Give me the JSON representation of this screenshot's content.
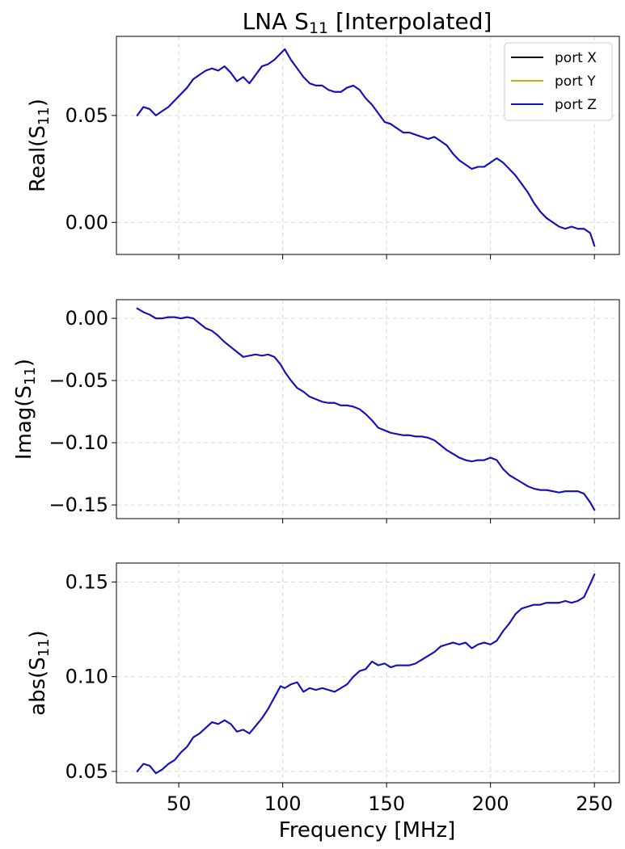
{
  "chart_data": {
    "type": "line",
    "title": "LNA S11 [Interpolated]",
    "title_parts": {
      "before": "LNA S",
      "sub": "11",
      "after": " [Interpolated]"
    },
    "xlabel": "Frequency [MHz]",
    "xlim": [
      20,
      262
    ],
    "xticks": [
      50,
      100,
      150,
      200,
      250
    ],
    "xtick_labels": [
      "50",
      "100",
      "150",
      "200",
      "250"
    ],
    "grid": true,
    "legend": {
      "placement": "top-right",
      "entries": [
        {
          "name": "port X",
          "color": "#000000"
        },
        {
          "name": "port Y",
          "color": "#c8b400"
        },
        {
          "name": "port Z",
          "color": "#1010cc"
        }
      ]
    },
    "x": [
      30,
      33,
      36,
      39,
      42,
      45,
      48,
      51,
      54,
      57,
      60,
      63,
      66,
      69,
      72,
      75,
      78,
      81,
      84,
      87,
      90,
      93,
      96,
      99,
      101,
      104,
      107,
      110,
      113,
      116,
      119,
      122,
      125,
      128,
      131,
      134,
      137,
      140,
      143,
      146,
      149,
      152,
      155,
      158,
      161,
      164,
      167,
      170,
      173,
      176,
      179,
      182,
      185,
      188,
      191,
      194,
      197,
      200,
      203,
      206,
      209,
      212,
      215,
      218,
      221,
      224,
      227,
      230,
      233,
      236,
      239,
      242,
      245,
      248,
      250
    ],
    "panels": [
      {
        "ylabel": "Real(S11)",
        "ylabel_parts": {
          "before": "Real(S",
          "sub": "11",
          "after": ")"
        },
        "ylim": [
          -0.015,
          0.087
        ],
        "yticks": [
          0.0,
          0.05
        ],
        "ytick_labels": [
          "0.00",
          "0.05"
        ],
        "series": [
          {
            "name": "port X",
            "color": "#000000",
            "values": [
              0.05,
              0.054,
              0.053,
              0.05,
              0.052,
              0.054,
              0.057,
              0.06,
              0.063,
              0.067,
              0.069,
              0.071,
              0.072,
              0.071,
              0.073,
              0.07,
              0.066,
              0.068,
              0.065,
              0.069,
              0.073,
              0.074,
              0.076,
              0.079,
              0.081,
              0.076,
              0.072,
              0.068,
              0.065,
              0.064,
              0.064,
              0.062,
              0.061,
              0.061,
              0.063,
              0.064,
              0.062,
              0.058,
              0.055,
              0.051,
              0.047,
              0.046,
              0.044,
              0.042,
              0.042,
              0.041,
              0.04,
              0.039,
              0.04,
              0.038,
              0.036,
              0.032,
              0.029,
              0.027,
              0.025,
              0.026,
              0.026,
              0.028,
              0.03,
              0.028,
              0.025,
              0.022,
              0.018,
              0.014,
              0.009,
              0.005,
              0.002,
              0.0,
              -0.002,
              -0.003,
              -0.002,
              -0.003,
              -0.003,
              -0.005,
              -0.011
            ]
          },
          {
            "name": "port Y",
            "color": "#c8b400",
            "values": [
              0.05,
              0.054,
              0.053,
              0.05,
              0.052,
              0.054,
              0.057,
              0.06,
              0.063,
              0.067,
              0.069,
              0.071,
              0.072,
              0.071,
              0.073,
              0.07,
              0.066,
              0.068,
              0.065,
              0.069,
              0.073,
              0.074,
              0.076,
              0.079,
              0.081,
              0.076,
              0.072,
              0.068,
              0.065,
              0.064,
              0.064,
              0.062,
              0.061,
              0.061,
              0.063,
              0.064,
              0.062,
              0.058,
              0.055,
              0.051,
              0.047,
              0.046,
              0.044,
              0.042,
              0.042,
              0.041,
              0.04,
              0.039,
              0.04,
              0.038,
              0.036,
              0.032,
              0.029,
              0.027,
              0.025,
              0.026,
              0.026,
              0.028,
              0.03,
              0.028,
              0.025,
              0.022,
              0.018,
              0.014,
              0.009,
              0.005,
              0.002,
              0.0,
              -0.002,
              -0.003,
              -0.002,
              -0.003,
              -0.003,
              -0.005,
              -0.011
            ]
          },
          {
            "name": "port Z",
            "color": "#1010cc",
            "values": [
              0.05,
              0.054,
              0.053,
              0.05,
              0.052,
              0.054,
              0.057,
              0.06,
              0.063,
              0.067,
              0.069,
              0.071,
              0.072,
              0.071,
              0.073,
              0.07,
              0.066,
              0.068,
              0.065,
              0.069,
              0.073,
              0.074,
              0.076,
              0.079,
              0.081,
              0.076,
              0.072,
              0.068,
              0.065,
              0.064,
              0.064,
              0.062,
              0.061,
              0.061,
              0.063,
              0.064,
              0.062,
              0.058,
              0.055,
              0.051,
              0.047,
              0.046,
              0.044,
              0.042,
              0.042,
              0.041,
              0.04,
              0.039,
              0.04,
              0.038,
              0.036,
              0.032,
              0.029,
              0.027,
              0.025,
              0.026,
              0.026,
              0.028,
              0.03,
              0.028,
              0.025,
              0.022,
              0.018,
              0.014,
              0.009,
              0.005,
              0.002,
              0.0,
              -0.002,
              -0.003,
              -0.002,
              -0.003,
              -0.003,
              -0.005,
              -0.011
            ]
          }
        ]
      },
      {
        "ylabel": "Imag(S11)",
        "ylabel_parts": {
          "before": "Imag(S",
          "sub": "11",
          "after": ")"
        },
        "ylim": [
          -0.161,
          0.015
        ],
        "yticks": [
          0.0,
          -0.05,
          -0.1,
          -0.15
        ],
        "ytick_labels": [
          "0.00",
          "−0.05",
          "−0.10",
          "−0.15"
        ],
        "series": [
          {
            "name": "port X",
            "color": "#000000",
            "values": [
              0.008,
              0.005,
              0.003,
              0.0,
              0.0,
              0.001,
              0.001,
              0.0,
              0.001,
              0.0,
              -0.004,
              -0.008,
              -0.01,
              -0.014,
              -0.019,
              -0.023,
              -0.027,
              -0.031,
              -0.03,
              -0.029,
              -0.03,
              -0.029,
              -0.031,
              -0.037,
              -0.043,
              -0.05,
              -0.056,
              -0.059,
              -0.063,
              -0.065,
              -0.067,
              -0.068,
              -0.068,
              -0.07,
              -0.07,
              -0.071,
              -0.073,
              -0.077,
              -0.082,
              -0.088,
              -0.09,
              -0.092,
              -0.093,
              -0.094,
              -0.094,
              -0.095,
              -0.095,
              -0.096,
              -0.098,
              -0.102,
              -0.106,
              -0.109,
              -0.112,
              -0.114,
              -0.115,
              -0.114,
              -0.114,
              -0.112,
              -0.114,
              -0.121,
              -0.126,
              -0.129,
              -0.132,
              -0.135,
              -0.137,
              -0.138,
              -0.138,
              -0.139,
              -0.14,
              -0.139,
              -0.139,
              -0.139,
              -0.141,
              -0.148,
              -0.154
            ]
          },
          {
            "name": "port Y",
            "color": "#c8b400",
            "values": [
              0.008,
              0.005,
              0.003,
              0.0,
              0.0,
              0.001,
              0.001,
              0.0,
              0.001,
              0.0,
              -0.004,
              -0.008,
              -0.01,
              -0.014,
              -0.019,
              -0.023,
              -0.027,
              -0.031,
              -0.03,
              -0.029,
              -0.03,
              -0.029,
              -0.031,
              -0.037,
              -0.043,
              -0.05,
              -0.056,
              -0.059,
              -0.063,
              -0.065,
              -0.067,
              -0.068,
              -0.068,
              -0.07,
              -0.07,
              -0.071,
              -0.073,
              -0.077,
              -0.082,
              -0.088,
              -0.09,
              -0.092,
              -0.093,
              -0.094,
              -0.094,
              -0.095,
              -0.095,
              -0.096,
              -0.098,
              -0.102,
              -0.106,
              -0.109,
              -0.112,
              -0.114,
              -0.115,
              -0.114,
              -0.114,
              -0.112,
              -0.114,
              -0.121,
              -0.126,
              -0.129,
              -0.132,
              -0.135,
              -0.137,
              -0.138,
              -0.138,
              -0.139,
              -0.14,
              -0.139,
              -0.139,
              -0.139,
              -0.141,
              -0.148,
              -0.154
            ]
          },
          {
            "name": "port Z",
            "color": "#1010cc",
            "values": [
              0.008,
              0.005,
              0.003,
              0.0,
              0.0,
              0.001,
              0.001,
              0.0,
              0.001,
              0.0,
              -0.004,
              -0.008,
              -0.01,
              -0.014,
              -0.019,
              -0.023,
              -0.027,
              -0.031,
              -0.03,
              -0.029,
              -0.03,
              -0.029,
              -0.031,
              -0.037,
              -0.043,
              -0.05,
              -0.056,
              -0.059,
              -0.063,
              -0.065,
              -0.067,
              -0.068,
              -0.068,
              -0.07,
              -0.07,
              -0.071,
              -0.073,
              -0.077,
              -0.082,
              -0.088,
              -0.09,
              -0.092,
              -0.093,
              -0.094,
              -0.094,
              -0.095,
              -0.095,
              -0.096,
              -0.098,
              -0.102,
              -0.106,
              -0.109,
              -0.112,
              -0.114,
              -0.115,
              -0.114,
              -0.114,
              -0.112,
              -0.114,
              -0.121,
              -0.126,
              -0.129,
              -0.132,
              -0.135,
              -0.137,
              -0.138,
              -0.138,
              -0.139,
              -0.14,
              -0.139,
              -0.139,
              -0.139,
              -0.141,
              -0.148,
              -0.154
            ]
          }
        ]
      },
      {
        "ylabel": "abs(S11)",
        "ylabel_parts": {
          "before": "abs(S",
          "sub": "11",
          "after": ")"
        },
        "ylim": [
          0.044,
          0.16
        ],
        "yticks": [
          0.05,
          0.1,
          0.15
        ],
        "ytick_labels": [
          "0.05",
          "0.10",
          "0.15"
        ],
        "series": [
          {
            "name": "port X",
            "color": "#000000",
            "values": [
              0.05,
              0.054,
              0.053,
              0.049,
              0.051,
              0.054,
              0.056,
              0.06,
              0.063,
              0.068,
              0.07,
              0.073,
              0.076,
              0.075,
              0.077,
              0.075,
              0.071,
              0.072,
              0.07,
              0.074,
              0.078,
              0.083,
              0.089,
              0.095,
              0.094,
              0.096,
              0.097,
              0.092,
              0.094,
              0.093,
              0.094,
              0.093,
              0.092,
              0.094,
              0.096,
              0.1,
              0.103,
              0.104,
              0.108,
              0.106,
              0.107,
              0.105,
              0.106,
              0.106,
              0.106,
              0.107,
              0.109,
              0.111,
              0.113,
              0.116,
              0.117,
              0.118,
              0.117,
              0.118,
              0.115,
              0.117,
              0.118,
              0.117,
              0.119,
              0.124,
              0.128,
              0.133,
              0.136,
              0.137,
              0.138,
              0.138,
              0.139,
              0.139,
              0.139,
              0.14,
              0.139,
              0.14,
              0.142,
              0.149,
              0.154
            ]
          },
          {
            "name": "port Y",
            "color": "#c8b400",
            "values": [
              0.05,
              0.054,
              0.053,
              0.049,
              0.051,
              0.054,
              0.056,
              0.06,
              0.063,
              0.068,
              0.07,
              0.073,
              0.076,
              0.075,
              0.077,
              0.075,
              0.071,
              0.072,
              0.07,
              0.074,
              0.078,
              0.083,
              0.089,
              0.095,
              0.094,
              0.096,
              0.097,
              0.092,
              0.094,
              0.093,
              0.094,
              0.093,
              0.092,
              0.094,
              0.096,
              0.1,
              0.103,
              0.104,
              0.108,
              0.106,
              0.107,
              0.105,
              0.106,
              0.106,
              0.106,
              0.107,
              0.109,
              0.111,
              0.113,
              0.116,
              0.117,
              0.118,
              0.117,
              0.118,
              0.115,
              0.117,
              0.118,
              0.117,
              0.119,
              0.124,
              0.128,
              0.133,
              0.136,
              0.137,
              0.138,
              0.138,
              0.139,
              0.139,
              0.139,
              0.14,
              0.139,
              0.14,
              0.142,
              0.149,
              0.154
            ]
          },
          {
            "name": "port Z",
            "color": "#1010cc",
            "values": [
              0.05,
              0.054,
              0.053,
              0.049,
              0.051,
              0.054,
              0.056,
              0.06,
              0.063,
              0.068,
              0.07,
              0.073,
              0.076,
              0.075,
              0.077,
              0.075,
              0.071,
              0.072,
              0.07,
              0.074,
              0.078,
              0.083,
              0.089,
              0.095,
              0.094,
              0.096,
              0.097,
              0.092,
              0.094,
              0.093,
              0.094,
              0.093,
              0.092,
              0.094,
              0.096,
              0.1,
              0.103,
              0.104,
              0.108,
              0.106,
              0.107,
              0.105,
              0.106,
              0.106,
              0.106,
              0.107,
              0.109,
              0.111,
              0.113,
              0.116,
              0.117,
              0.118,
              0.117,
              0.118,
              0.115,
              0.117,
              0.118,
              0.117,
              0.119,
              0.124,
              0.128,
              0.133,
              0.136,
              0.137,
              0.138,
              0.138,
              0.139,
              0.139,
              0.139,
              0.14,
              0.139,
              0.14,
              0.142,
              0.149,
              0.154
            ]
          }
        ]
      }
    ]
  }
}
